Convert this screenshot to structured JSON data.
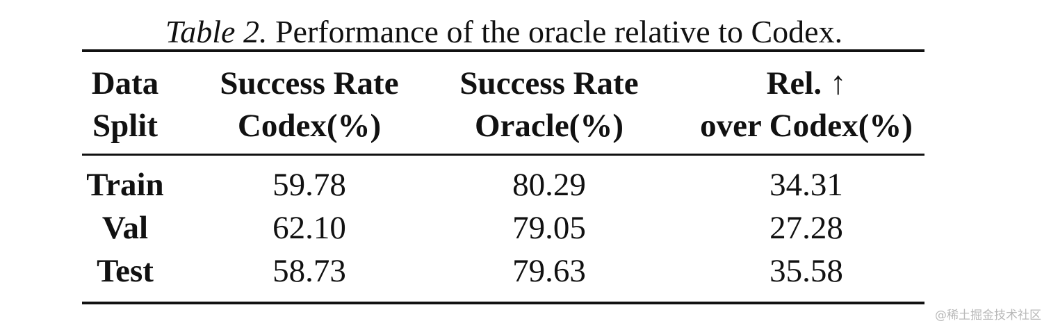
{
  "caption": {
    "label": "Table 2.",
    "text": "Performance of the oracle relative to Codex."
  },
  "table": {
    "headers": [
      {
        "line1": "Data",
        "line2": "Split"
      },
      {
        "line1": "Success Rate",
        "line2": "Codex(%)"
      },
      {
        "line1": "Success Rate",
        "line2": "Oracle(%)"
      },
      {
        "line1": "Rel. ↑",
        "line2": "over Codex(%)"
      }
    ],
    "rows": [
      {
        "split": "Train",
        "codex": "59.78",
        "oracle": "80.29",
        "rel": "34.31"
      },
      {
        "split": "Val",
        "codex": "62.10",
        "oracle": "79.05",
        "rel": "27.28"
      },
      {
        "split": "Test",
        "codex": "58.73",
        "oracle": "79.63",
        "rel": "35.58"
      }
    ]
  },
  "watermark": "@稀土掘金技术社区"
}
